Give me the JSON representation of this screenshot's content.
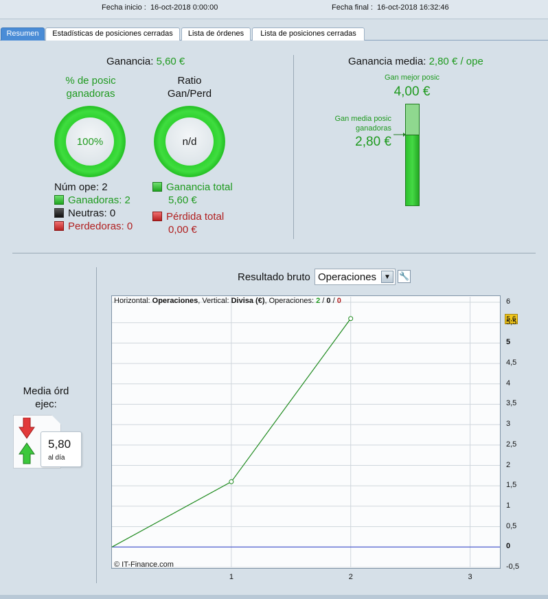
{
  "header": {
    "start_label": "Fecha inicio :",
    "start_value": "16-oct-2018 0:00:00",
    "end_label": "Fecha final :",
    "end_value": "16-oct-2018 16:32:46"
  },
  "tabs": [
    {
      "label": "Resumen",
      "active": true
    },
    {
      "label": "Estadísticas de posiciones cerradas",
      "active": false
    },
    {
      "label": "Lista de órdenes",
      "active": false
    },
    {
      "label": "Lista de posiciones cerradas",
      "active": false
    }
  ],
  "summary": {
    "profit_label": "Ganancia:",
    "profit_value": "5,60 €",
    "winners_pct_title_1": "% de posic",
    "winners_pct_title_2": "ganadoras",
    "winners_pct_value": "100%",
    "ratio_title_1": "Ratio",
    "ratio_title_2": "Gan/Perd",
    "ratio_value": "n/d",
    "num_ops": "Núm ope: 2",
    "winners": "Ganadoras: 2",
    "neutral": "Neutras: 0",
    "losers": "Perdedoras: 0",
    "total_gain_label": "Ganancia total",
    "total_gain_value": "5,60 €",
    "total_loss_label": "Pérdida total",
    "total_loss_value": "0,00 €"
  },
  "average": {
    "label": "Ganancia media:",
    "value": "2,80 € / ope",
    "best_label": "Gan mejor posic",
    "best_value": "4,00 €",
    "avg_win_label_1": "Gan media posic",
    "avg_win_label_2": "ganadoras",
    "avg_win_value": "2,80 €",
    "gauge_fill_fraction": 0.7
  },
  "orders": {
    "title_1": "Media órd",
    "title_2": "ejec:",
    "value": "5,80",
    "unit": "al día"
  },
  "chart_controls": {
    "title": "Resultado bruto",
    "select_value": "Operaciones"
  },
  "chart_data": {
    "type": "line",
    "header_prefix": "Horizontal:",
    "header_h": "Operaciones",
    "header_v_prefix": ", Vertical:",
    "header_v": "Divisa (€)",
    "header_ops_prefix": ", Operaciones:",
    "header_ops_win": "2",
    "header_ops_neutral": "0",
    "header_ops_loss": "0",
    "x": [
      0,
      1,
      2
    ],
    "values": [
      0,
      1.6,
      5.6
    ],
    "xlim": [
      0,
      3.25
    ],
    "ylim": [
      -0.5,
      6
    ],
    "x_ticks": [
      "1",
      "2",
      "3"
    ],
    "y_ticks": [
      "6",
      "5,5",
      "5",
      "4,5",
      "4",
      "3,5",
      "3",
      "2,5",
      "2",
      "1,5",
      "1",
      "0,5",
      "0",
      "-0,5"
    ],
    "last_value_badge": "5,6",
    "line_color": "#1e8a1e",
    "zero_line_color": "#2a3cc8",
    "copyright": "© IT-Finance.com"
  }
}
